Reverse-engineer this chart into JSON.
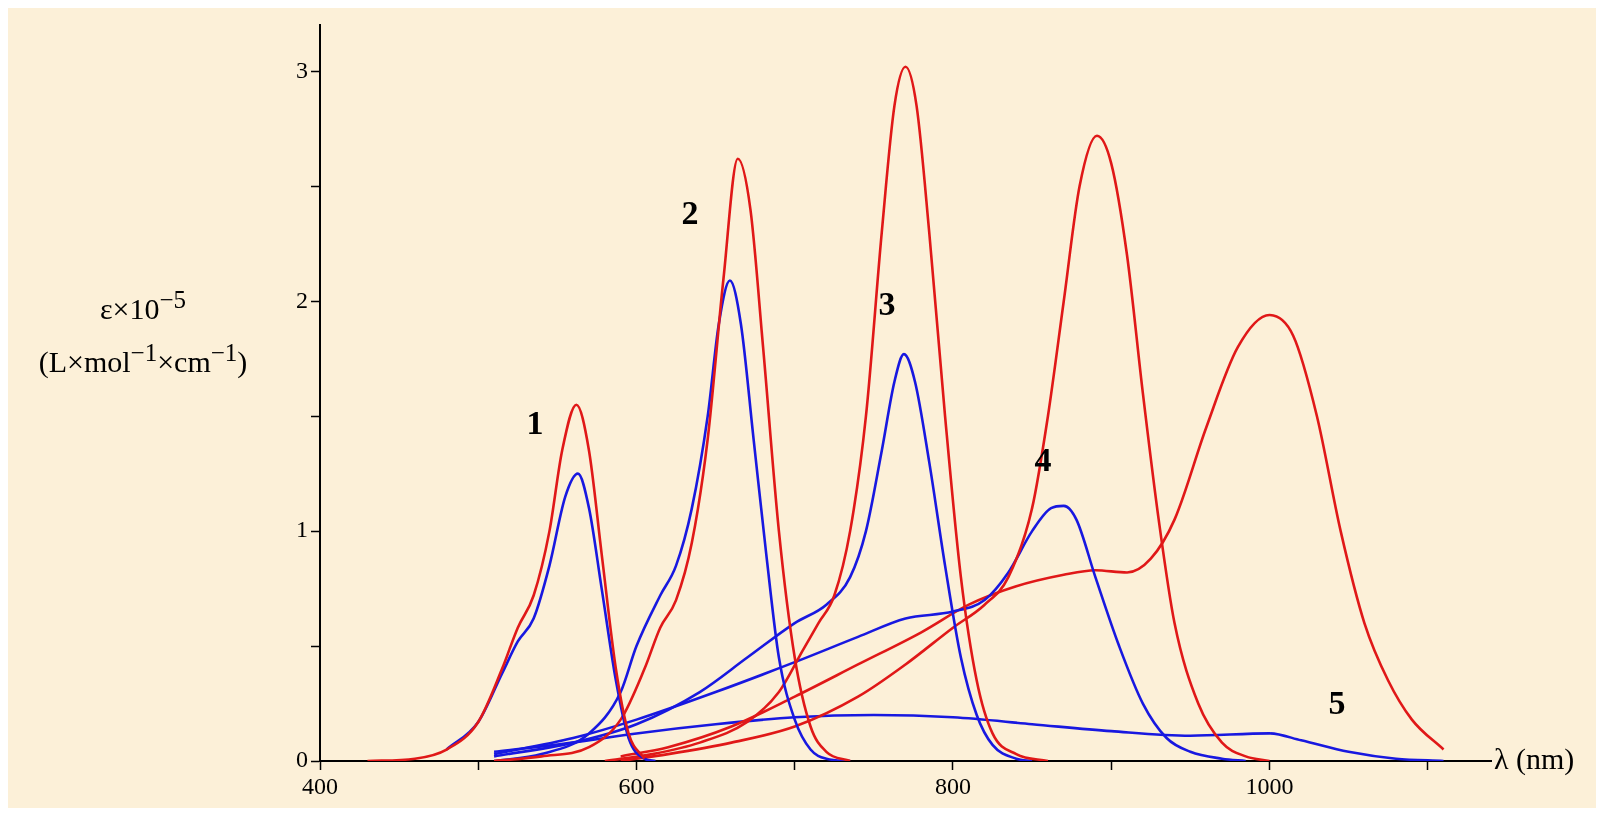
{
  "chart_data": {
    "type": "line",
    "xlabel": "λ (nm)",
    "ylabel": "ε×10$^{−5}$ (L×mol$^{−1}$×cm$^{−1}$)",
    "xlim": [
      400,
      1140
    ],
    "xticks": [
      400,
      {
        "value": 500,
        "label": null
      },
      600,
      {
        "value": 700,
        "label": null
      },
      800,
      {
        "value": 900,
        "label": null
      },
      1000,
      {
        "value": 1100,
        "label": null
      }
    ],
    "ylim": [
      0,
      3.2
    ],
    "yticks": [
      0,
      {
        "value": 0.5,
        "label": null
      },
      1,
      {
        "value": 1.5,
        "label": null
      },
      2,
      {
        "value": 2.5,
        "label": null
      },
      3
    ],
    "grid": false,
    "legend": false,
    "marker": "none",
    "line_style": "solid",
    "annotations": [
      "1",
      "2",
      "3",
      "4",
      "5"
    ],
    "series": [
      {
        "color": "#e01818",
        "x": [
          430,
          460,
          480,
          500,
          515,
          525,
          535,
          545,
          553,
          562,
          570,
          578,
          587,
          595,
          605
        ],
        "values": [
          0,
          0.01,
          0.05,
          0.17,
          0.4,
          0.58,
          0.72,
          1.0,
          1.35,
          1.55,
          1.35,
          0.9,
          0.4,
          0.12,
          0.01
        ]
      },
      {
        "color": "#1818e0",
        "x": [
          480,
          500,
          515,
          525,
          535,
          545,
          555,
          563,
          570,
          578,
          587,
          595,
          605,
          612
        ],
        "values": [
          0.05,
          0.17,
          0.38,
          0.52,
          0.62,
          0.85,
          1.15,
          1.25,
          1.1,
          0.75,
          0.35,
          0.1,
          0.01,
          0
        ]
      },
      {
        "color": "#e01818",
        "x": [
          510,
          540,
          570,
          590,
          605,
          615,
          625,
          635,
          645,
          655,
          664,
          672,
          680,
          690,
          700,
          710,
          720,
          735
        ],
        "values": [
          0,
          0.02,
          0.06,
          0.18,
          0.4,
          0.58,
          0.7,
          0.95,
          1.4,
          2.1,
          2.62,
          2.4,
          1.8,
          1.0,
          0.45,
          0.15,
          0.04,
          0
        ]
      },
      {
        "color": "#1818e0",
        "x": [
          510,
          540,
          570,
          590,
          600,
          615,
          625,
          635,
          645,
          652,
          659,
          666,
          674,
          682,
          690,
          700,
          710,
          720,
          735
        ],
        "values": [
          0,
          0.03,
          0.12,
          0.3,
          0.5,
          0.72,
          0.85,
          1.1,
          1.5,
          1.9,
          2.09,
          1.9,
          1.4,
          0.9,
          0.45,
          0.18,
          0.05,
          0.01,
          0
        ]
      },
      {
        "color": "#e01818",
        "x": [
          580,
          610,
          640,
          670,
          690,
          705,
          715,
          725,
          735,
          745,
          755,
          763,
          770,
          777,
          785,
          795,
          805,
          815,
          825,
          840,
          860
        ],
        "values": [
          0,
          0.03,
          0.08,
          0.17,
          0.3,
          0.48,
          0.6,
          0.72,
          1.0,
          1.5,
          2.3,
          2.85,
          3.02,
          2.85,
          2.3,
          1.5,
          0.8,
          0.35,
          0.12,
          0.03,
          0
        ]
      },
      {
        "color": "#1818e0",
        "x": [
          510,
          560,
          600,
          640,
          670,
          700,
          720,
          735,
          745,
          755,
          763,
          769,
          776,
          785,
          795,
          805,
          815,
          825,
          840,
          850
        ],
        "values": [
          0.02,
          0.08,
          0.16,
          0.3,
          0.45,
          0.6,
          0.68,
          0.8,
          1.0,
          1.35,
          1.65,
          1.77,
          1.65,
          1.3,
          0.85,
          0.45,
          0.2,
          0.07,
          0.01,
          0
        ]
      },
      {
        "color": "#e01818",
        "x": [
          590,
          620,
          660,
          700,
          740,
          770,
          800,
          820,
          835,
          850,
          860,
          870,
          880,
          891,
          900,
          910,
          920,
          930,
          940,
          955,
          970,
          985,
          1000
        ],
        "values": [
          0,
          0.03,
          0.08,
          0.15,
          0.28,
          0.42,
          0.58,
          0.68,
          0.8,
          1.1,
          1.5,
          2.0,
          2.5,
          2.72,
          2.6,
          2.2,
          1.6,
          1.05,
          0.6,
          0.25,
          0.08,
          0.02,
          0
        ]
      },
      {
        "color": "#1818e0",
        "x": [
          510,
          560,
          600,
          650,
          700,
          740,
          770,
          800,
          820,
          835,
          850,
          862,
          870,
          878,
          890,
          905,
          920,
          935,
          950,
          970,
          985
        ],
        "values": [
          0.03,
          0.1,
          0.18,
          0.3,
          0.43,
          0.54,
          0.62,
          0.65,
          0.7,
          0.82,
          1.0,
          1.1,
          1.11,
          1.05,
          0.8,
          0.5,
          0.25,
          0.1,
          0.04,
          0.01,
          0
        ]
      },
      {
        "color": "#e01818",
        "x": [
          590,
          620,
          660,
          700,
          740,
          780,
          810,
          840,
          870,
          890,
          910,
          925,
          940,
          960,
          980,
          1000,
          1015,
          1030,
          1045,
          1060,
          1075,
          1090,
          1110
        ],
        "values": [
          0.02,
          0.06,
          0.15,
          0.28,
          0.42,
          0.56,
          0.68,
          0.76,
          0.81,
          0.83,
          0.82,
          0.88,
          1.05,
          1.45,
          1.8,
          1.94,
          1.85,
          1.5,
          1.0,
          0.6,
          0.35,
          0.18,
          0.05
        ]
      },
      {
        "color": "#1818e0",
        "x": [
          510,
          560,
          600,
          650,
          700,
          750,
          800,
          850,
          900,
          950,
          1000,
          1020,
          1050,
          1080,
          1110
        ],
        "values": [
          0.04,
          0.08,
          0.12,
          0.16,
          0.19,
          0.2,
          0.19,
          0.16,
          0.13,
          0.11,
          0.12,
          0.09,
          0.04,
          0.01,
          0
        ]
      }
    ]
  }
}
